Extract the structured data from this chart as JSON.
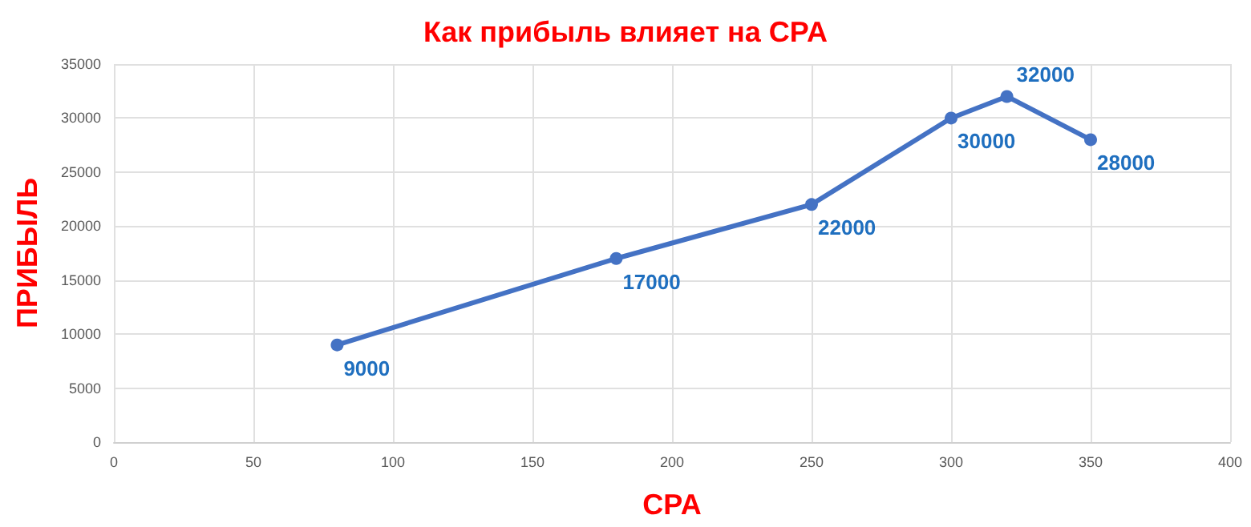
{
  "chart_data": {
    "type": "line",
    "title": "Как прибыль влияет на CPA",
    "xlabel": "CPA",
    "ylabel": "ПРИБЫЛЬ",
    "x": [
      80,
      180,
      250,
      300,
      320,
      350
    ],
    "series": [
      {
        "color": "#4472c4",
        "values": [
          9000,
          17000,
          22000,
          30000,
          32000,
          28000
        ]
      }
    ],
    "xlim": [
      0,
      400
    ],
    "xticks": [
      0,
      50,
      100,
      150,
      200,
      250,
      300,
      350,
      400
    ],
    "ylim": [
      0,
      35000
    ],
    "yticks": [
      0,
      5000,
      10000,
      15000,
      20000,
      25000,
      30000,
      35000
    ],
    "grid": true,
    "marker": "circle",
    "line_style": "solid",
    "data_labels": true
  }
}
